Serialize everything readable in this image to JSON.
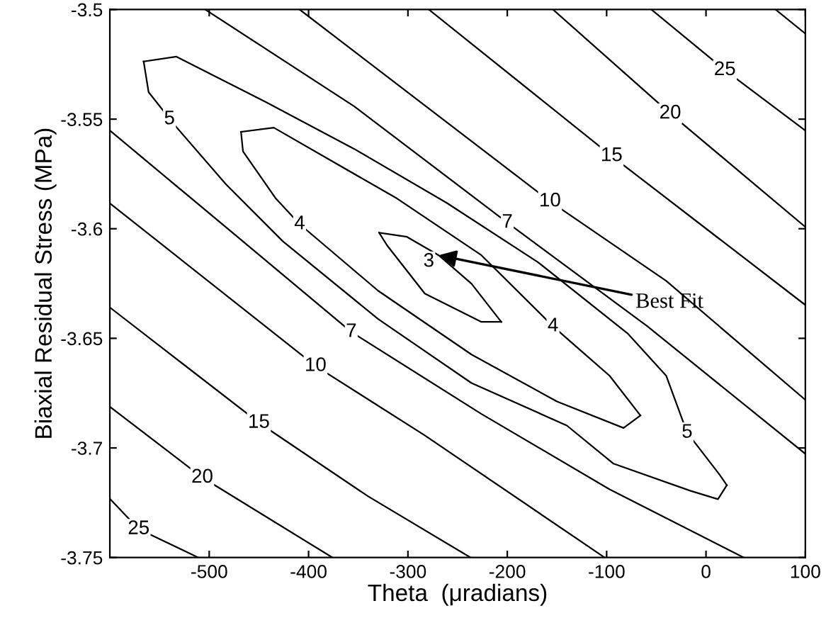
{
  "chart_data": {
    "type": "line",
    "xlabel": "Theta  (μradians)",
    "ylabel": "Biaxial Residual Stress (MPa)",
    "xlim": [
      -600,
      100
    ],
    "ylim": [
      -3.75,
      -3.5
    ],
    "xticks": [
      -500,
      -400,
      -300,
      -200,
      -100,
      0,
      100
    ],
    "yticks": [
      -3.75,
      -3.7,
      -3.65,
      -3.6,
      -3.55,
      -3.5
    ],
    "grid": false,
    "legend": false,
    "marker": "none",
    "line_style": "solid",
    "series": [
      {
        "color": "#000000",
        "x": [
          70,
          100
        ],
        "values": [
          -3.5,
          -3.511
        ]
      },
      {
        "color": "#000000",
        "x": [
          -55,
          19,
          100
        ],
        "values": [
          -3.5,
          -3.5276,
          -3.5552
        ]
      },
      {
        "color": "#000000",
        "x": [
          -154,
          -36,
          100
        ],
        "values": [
          -3.5,
          -3.5474,
          -3.5992
        ]
      },
      {
        "color": "#000000",
        "x": [
          -279,
          -95,
          100
        ],
        "values": [
          -3.5,
          -3.5668,
          -3.6348
        ]
      },
      {
        "color": "#000000",
        "x": [
          -409,
          -157,
          -40,
          100
        ],
        "values": [
          -3.5,
          -3.5875,
          -3.6238,
          -3.6781
        ]
      },
      {
        "color": "#000000",
        "x": [
          -504,
          -354,
          -200,
          -59,
          100
        ],
        "values": [
          -3.5,
          -3.5442,
          -3.5972,
          -3.6445,
          -3.7027
        ]
      },
      {
        "color": "#000000",
        "x": [
          -566,
          -533,
          -443,
          -354,
          -261,
          -169,
          -79,
          -40,
          -19,
          14,
          21
        ],
        "values": [
          -3.5237,
          -3.5215,
          -3.5422,
          -3.5636,
          -3.5882,
          -3.6153,
          -3.6477,
          -3.6671,
          -3.693,
          -3.7124,
          -3.717
        ]
      },
      {
        "color": "#000000",
        "x": [
          -566,
          -561,
          -535,
          -483,
          -426,
          -330,
          -236,
          -140,
          -93,
          -16,
          12,
          21
        ],
        "values": [
          -3.5237,
          -3.5377,
          -3.5526,
          -3.5798,
          -3.6057,
          -3.6412,
          -3.6704,
          -3.6898,
          -3.7072,
          -3.7195,
          -3.7234,
          -3.717
        ]
      },
      {
        "color": "#000000",
        "x": [
          -468,
          -435,
          -311,
          -226,
          -154,
          -97,
          -66
        ],
        "values": [
          -3.5558,
          -3.5539,
          -3.5862,
          -3.6121,
          -3.6445,
          -3.6671,
          -3.6852
        ]
      },
      {
        "color": "#000000",
        "x": [
          -468,
          -466,
          -433,
          -409,
          -330,
          -236,
          -150,
          -83,
          -66
        ],
        "values": [
          -3.5558,
          -3.5647,
          -3.5862,
          -3.5979,
          -3.6283,
          -3.6574,
          -3.6788,
          -3.6909,
          -3.6852
        ]
      },
      {
        "color": "#000000",
        "x": [
          -329,
          -301,
          -269,
          -236,
          -206
        ],
        "values": [
          -3.6018,
          -3.6037,
          -3.6121,
          -3.6251,
          -3.6425
        ]
      },
      {
        "color": "#000000",
        "x": [
          -329,
          -321,
          -283,
          -226,
          -206
        ],
        "values": [
          -3.6018,
          -3.6076,
          -3.6296,
          -3.6425,
          -3.6425
        ]
      },
      {
        "color": "#000000",
        "x": [
          -600,
          -475,
          -357,
          -226,
          -97,
          38
        ],
        "values": [
          -3.5552,
          -3.6024,
          -3.6471,
          -3.6845,
          -3.7189,
          -3.75
        ]
      },
      {
        "color": "#000000",
        "x": [
          -600,
          -393,
          -283,
          -102
        ],
        "values": [
          -3.5884,
          -3.6626,
          -3.6943,
          -3.75
        ]
      },
      {
        "color": "#000000",
        "x": [
          -600,
          -450,
          -340,
          -237
        ],
        "values": [
          -3.6359,
          -3.6885,
          -3.7221,
          -3.75
        ]
      },
      {
        "color": "#000000",
        "x": [
          -600,
          -507,
          -376
        ],
        "values": [
          -3.6812,
          -3.7135,
          -3.75
        ]
      },
      {
        "color": "#000000",
        "x": [
          -600,
          -571,
          -511
        ],
        "values": [
          -3.7232,
          -3.737,
          -3.75
        ]
      }
    ],
    "annotations": [
      {
        "text": "5",
        "x": -540,
        "y": -3.55
      },
      {
        "text": "4",
        "x": -409,
        "y": -3.5979
      },
      {
        "text": "3",
        "x": -279,
        "y": -3.615
      },
      {
        "text": "7",
        "x": -200,
        "y": -3.5972
      },
      {
        "text": "10",
        "x": -157,
        "y": -3.5875
      },
      {
        "text": "15",
        "x": -95,
        "y": -3.5668
      },
      {
        "text": "20",
        "x": -36,
        "y": -3.5474
      },
      {
        "text": "25",
        "x": 19,
        "y": -3.5276
      },
      {
        "text": "4",
        "x": -154,
        "y": -3.6445
      },
      {
        "text": "5",
        "x": -19,
        "y": -3.693
      },
      {
        "text": "7",
        "x": -357,
        "y": -3.6471
      },
      {
        "text": "10",
        "x": -393,
        "y": -3.6626
      },
      {
        "text": "15",
        "x": -450,
        "y": -3.6885
      },
      {
        "text": "20",
        "x": -507,
        "y": -3.7135
      },
      {
        "text": "25",
        "x": -571,
        "y": -3.737
      },
      {
        "text": "Best Fit",
        "x": -269,
        "y": -3.6121
      }
    ]
  }
}
